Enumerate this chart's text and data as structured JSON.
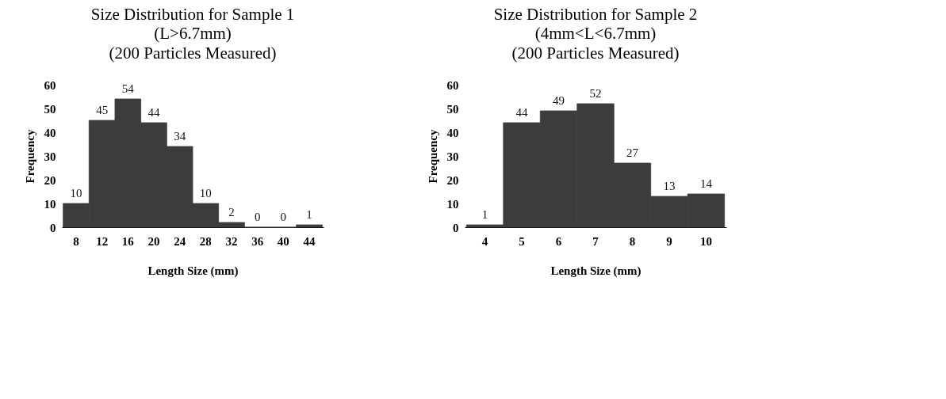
{
  "chart_data": [
    {
      "type": "bar",
      "title": "Size Distribution for Sample 1",
      "subtitle": "(L>6.7mm)\n(200 Particles Measured)",
      "xlabel": "Length Size (mm)",
      "ylabel": "Frequency",
      "categories": [
        "8",
        "12",
        "16",
        "20",
        "24",
        "28",
        "32",
        "36",
        "40",
        "44"
      ],
      "values": [
        10,
        45,
        54,
        44,
        34,
        10,
        2,
        0,
        0,
        1
      ],
      "color": "#3c3c3c",
      "ylim": [
        0,
        60
      ],
      "yticks": [
        0,
        10,
        20,
        30,
        40,
        50,
        60
      ],
      "data_labels": true,
      "grid": false
    },
    {
      "type": "bar",
      "title": "Size Distribution for Sample 2",
      "subtitle": "(4mm<L<6.7mm)\n(200 Particles Measured)",
      "xlabel": "Length Size (mm)",
      "ylabel": "Frequency",
      "categories": [
        "4",
        "5",
        "6",
        "7",
        "8",
        "9",
        "10"
      ],
      "values": [
        1,
        44,
        49,
        52,
        27,
        13,
        14
      ],
      "color": "#3c3c3c",
      "ylim": [
        0,
        60
      ],
      "yticks": [
        0,
        10,
        20,
        30,
        40,
        50,
        60
      ],
      "data_labels": true,
      "grid": false
    }
  ]
}
